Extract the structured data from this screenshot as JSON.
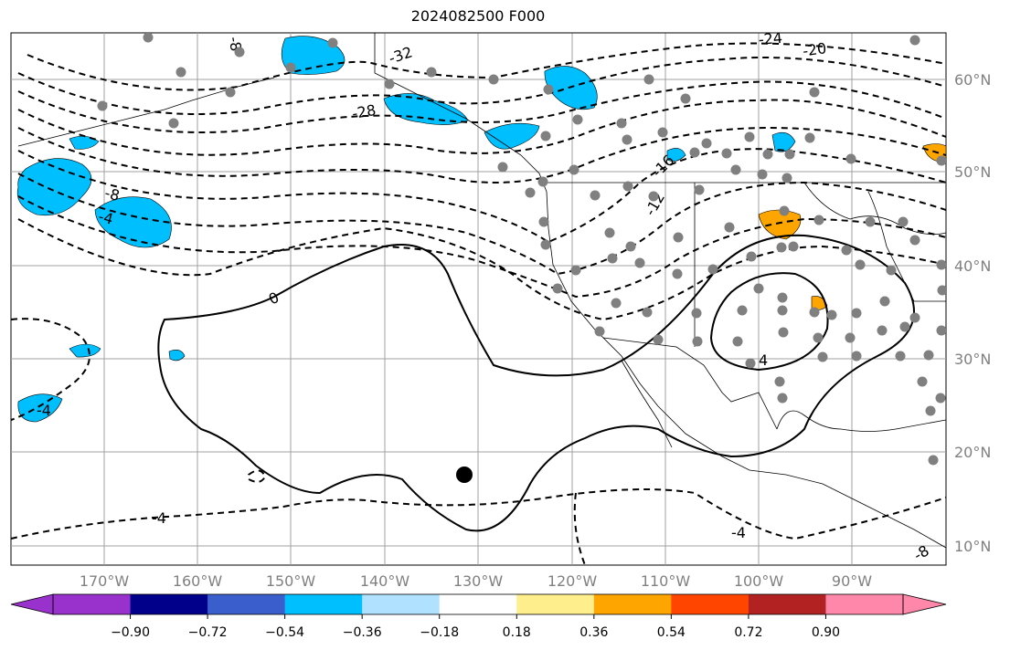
{
  "title": "2024082500 F000",
  "map": {
    "lon_labels": [
      "170°W",
      "160°W",
      "150°W",
      "140°W",
      "130°W",
      "120°W",
      "110°W",
      "100°W",
      "90°W"
    ],
    "lat_labels": [
      "60°N",
      "50°N",
      "40°N",
      "30°N",
      "20°N",
      "10°N"
    ],
    "contour_labels": [
      "-32",
      "-28",
      "-24",
      "-20",
      "-16",
      "-12",
      "-8",
      "-4",
      "-8",
      "-4",
      "0",
      "4",
      "-4",
      "-4",
      "-8"
    ],
    "marker_icon": "black-dot-marker",
    "station_icon": "gray-station-dot"
  },
  "colorbar": {
    "ticks": [
      "−0.90",
      "−0.72",
      "−0.54",
      "−0.36",
      "−0.18",
      "0.18",
      "0.36",
      "0.54",
      "0.72",
      "0.90"
    ],
    "colors": [
      "#9932cc",
      "#00008b",
      "#3a5fcd",
      "#00bfff",
      "#b0e2ff",
      "#ffffff",
      "#ffee8c",
      "#ffa500",
      "#ff4500",
      "#b22222",
      "#ff88aa"
    ],
    "under_color": "#9932cc",
    "over_color": "#ff88aa"
  }
}
